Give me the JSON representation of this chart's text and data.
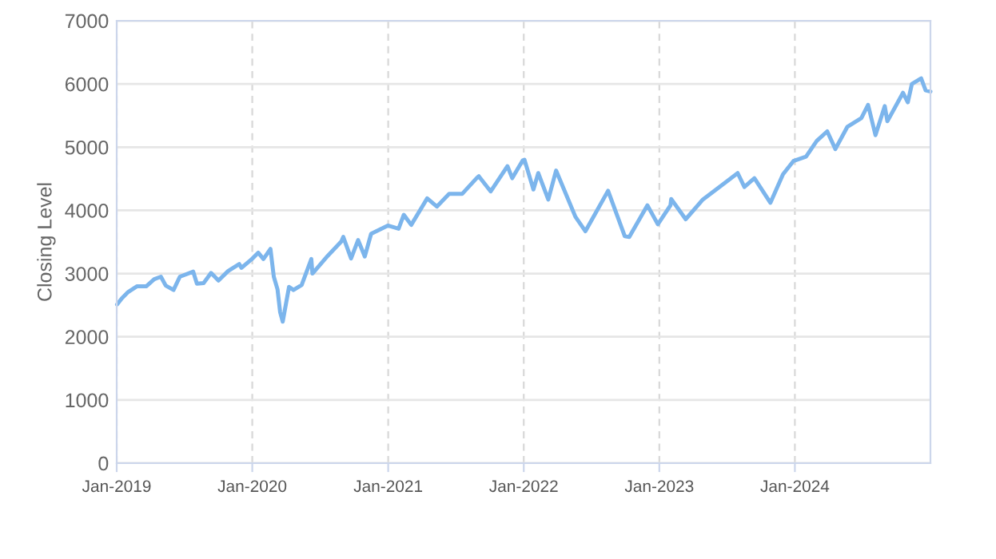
{
  "chart_data": {
    "type": "line",
    "ylabel": "Closing Level",
    "xlim": [
      "2019-01-01",
      "2024-12-31"
    ],
    "xticks": [
      {
        "value": "2019-01-01",
        "label": "Jan-2019"
      },
      {
        "value": "2020-01-01",
        "label": "Jan-2020"
      },
      {
        "value": "2021-01-01",
        "label": "Jan-2021"
      },
      {
        "value": "2022-01-01",
        "label": "Jan-2022"
      },
      {
        "value": "2023-01-01",
        "label": "Jan-2023"
      },
      {
        "value": "2024-01-01",
        "label": "Jan-2024"
      }
    ],
    "ylim": [
      0,
      7000
    ],
    "yticks": [
      0,
      1000,
      2000,
      3000,
      4000,
      5000,
      6000,
      7000
    ],
    "grid": true,
    "marker": "none",
    "line_style": "solid",
    "series": [
      {
        "color": "#7cb5ec",
        "x": [
          "2019-01-02",
          "2019-01-15",
          "2019-02-01",
          "2019-02-25",
          "2019-03-22",
          "2019-04-12",
          "2019-04-30",
          "2019-05-13",
          "2019-06-03",
          "2019-06-20",
          "2019-07-26",
          "2019-08-05",
          "2019-08-23",
          "2019-09-12",
          "2019-10-02",
          "2019-10-28",
          "2019-11-27",
          "2019-12-03",
          "2019-12-31",
          "2020-01-17",
          "2020-01-31",
          "2020-02-19",
          "2020-02-28",
          "2020-03-09",
          "2020-03-16",
          "2020-03-23",
          "2020-04-09",
          "2020-04-21",
          "2020-05-13",
          "2020-06-08",
          "2020-06-11",
          "2020-07-22",
          "2020-08-28",
          "2020-09-02",
          "2020-09-23",
          "2020-10-12",
          "2020-10-30",
          "2020-11-16",
          "2020-12-31",
          "2021-01-29",
          "2021-02-12",
          "2021-03-04",
          "2021-04-16",
          "2021-05-12",
          "2021-06-14",
          "2021-07-19",
          "2021-08-27",
          "2021-09-02",
          "2021-10-04",
          "2021-11-18",
          "2021-12-01",
          "2021-12-29",
          "2022-01-03",
          "2022-01-27",
          "2022-02-09",
          "2022-03-08",
          "2022-03-29",
          "2022-05-20",
          "2022-06-16",
          "2022-07-08",
          "2022-08-16",
          "2022-09-30",
          "2022-10-12",
          "2022-11-30",
          "2022-12-28",
          "2023-01-31",
          "2023-02-02",
          "2023-03-13",
          "2023-04-28",
          "2023-06-30",
          "2023-07-31",
          "2023-08-18",
          "2023-09-14",
          "2023-10-27",
          "2023-11-30",
          "2023-12-28",
          "2024-01-31",
          "2024-02-29",
          "2024-03-28",
          "2024-04-19",
          "2024-05-21",
          "2024-06-28",
          "2024-07-16",
          "2024-08-05",
          "2024-08-30",
          "2024-09-06",
          "2024-10-18",
          "2024-10-31",
          "2024-11-11",
          "2024-12-06",
          "2024-12-18",
          "2024-12-31"
        ],
        "values": [
          2510,
          2610,
          2710,
          2800,
          2800,
          2910,
          2950,
          2810,
          2740,
          2950,
          3030,
          2840,
          2850,
          3010,
          2890,
          3040,
          3150,
          3090,
          3230,
          3330,
          3230,
          3390,
          2950,
          2750,
          2390,
          2240,
          2790,
          2740,
          2820,
          3230,
          3000,
          3280,
          3510,
          3580,
          3240,
          3530,
          3270,
          3630,
          3760,
          3710,
          3930,
          3770,
          4190,
          4060,
          4260,
          4260,
          4510,
          4540,
          4300,
          4700,
          4510,
          4790,
          4800,
          4330,
          4590,
          4170,
          4630,
          3900,
          3670,
          3900,
          4310,
          3590,
          3580,
          4080,
          3780,
          4080,
          4180,
          3860,
          4170,
          4450,
          4590,
          4370,
          4510,
          4120,
          4570,
          4780,
          4850,
          5100,
          5250,
          4970,
          5320,
          5460,
          5670,
          5190,
          5650,
          5410,
          5860,
          5710,
          6000,
          6090,
          5900,
          5880
        ]
      }
    ]
  }
}
